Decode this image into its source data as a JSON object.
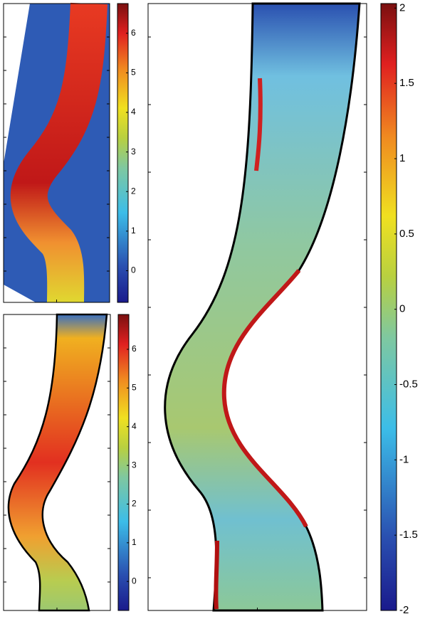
{
  "chart_data": [
    {
      "type": "contour",
      "colormap": "jet",
      "colorbar_lim": [
        -0.8,
        6.75
      ],
      "colorbar_ticks": [
        0,
        1,
        2,
        3,
        4,
        5,
        6
      ]
    },
    {
      "type": "contour",
      "colormap": "jet",
      "colorbar_lim": [
        -0.75,
        6.9
      ],
      "colorbar_ticks": [
        0,
        1,
        2,
        3,
        4,
        5,
        6
      ]
    },
    {
      "type": "contour",
      "colormap": "jet",
      "colorbar_lim": [
        -2,
        2.03
      ],
      "colorbar_ticks": [
        -2,
        -1.5,
        -1,
        -0.5,
        0,
        0.5,
        1,
        1.5,
        2
      ]
    }
  ]
}
